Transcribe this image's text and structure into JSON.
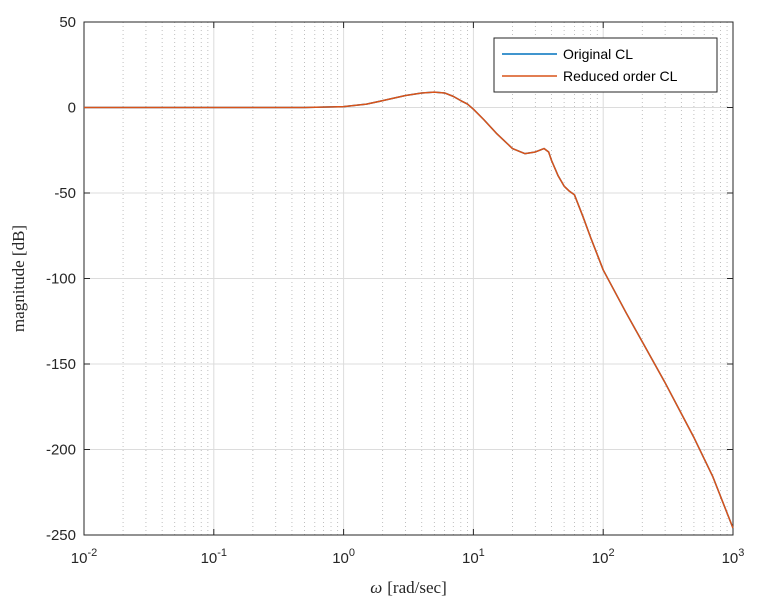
{
  "chart_data": {
    "type": "line",
    "xscale": "log",
    "xlim": [
      0.01,
      1000
    ],
    "ylim": [
      -250,
      50
    ],
    "xticks": [
      0.01,
      0.1,
      1,
      10,
      100,
      1000
    ],
    "xtick_labels": [
      {
        "base": "10",
        "exp": "-2"
      },
      {
        "base": "10",
        "exp": "-1"
      },
      {
        "base": "10",
        "exp": "0"
      },
      {
        "base": "10",
        "exp": "1"
      },
      {
        "base": "10",
        "exp": "2"
      },
      {
        "base": "10",
        "exp": "3"
      }
    ],
    "yticks": [
      50,
      0,
      -50,
      -100,
      -150,
      -200,
      -250
    ],
    "ytick_labels": [
      "50",
      "0",
      "-50",
      "-100",
      "-150",
      "-200",
      "-250"
    ],
    "xlabel_symbol": "ω",
    "xlabel_unit": "[rad/sec]",
    "ylabel": "magnitude [dB]",
    "grid": true,
    "minor_grid_x": true,
    "legend_position": "top-right",
    "series": [
      {
        "name": "Original CL",
        "color": "#0072BD",
        "x": [
          0.01,
          0.1,
          0.5,
          1,
          1.5,
          2,
          3,
          4,
          5,
          6,
          7,
          8,
          9,
          10,
          12,
          15,
          20,
          25,
          30,
          35,
          38,
          40,
          45,
          50,
          55,
          60,
          70,
          80,
          90,
          100,
          150,
          200,
          300,
          500,
          700,
          1000
        ],
        "y": [
          0,
          0,
          0,
          0.5,
          2,
          4,
          7,
          8.5,
          9,
          8.5,
          6.5,
          4,
          2,
          -1,
          -7,
          -15,
          -24,
          -27,
          -26,
          -24,
          -26,
          -31,
          -40,
          -46,
          -49,
          -51,
          -64,
          -76,
          -86,
          -95,
          -120,
          -137,
          -161,
          -193,
          -216,
          -246
        ]
      },
      {
        "name": "Reduced order CL",
        "color": "#D95319",
        "x": [
          0.01,
          0.1,
          0.5,
          1,
          1.5,
          2,
          3,
          4,
          5,
          6,
          7,
          8,
          9,
          10,
          12,
          15,
          20,
          25,
          30,
          35,
          38,
          40,
          45,
          50,
          55,
          60,
          70,
          80,
          90,
          100,
          150,
          200,
          300,
          500,
          700,
          1000
        ],
        "y": [
          0,
          0,
          0,
          0.5,
          2,
          4,
          7,
          8.5,
          9,
          8.5,
          6.5,
          4,
          2,
          -1,
          -7,
          -15,
          -24,
          -27,
          -26,
          -24,
          -26,
          -31,
          -40,
          -46,
          -49,
          -51,
          -64,
          -76,
          -86,
          -95,
          -120,
          -137,
          -161,
          -193,
          -216,
          -246
        ]
      }
    ]
  }
}
